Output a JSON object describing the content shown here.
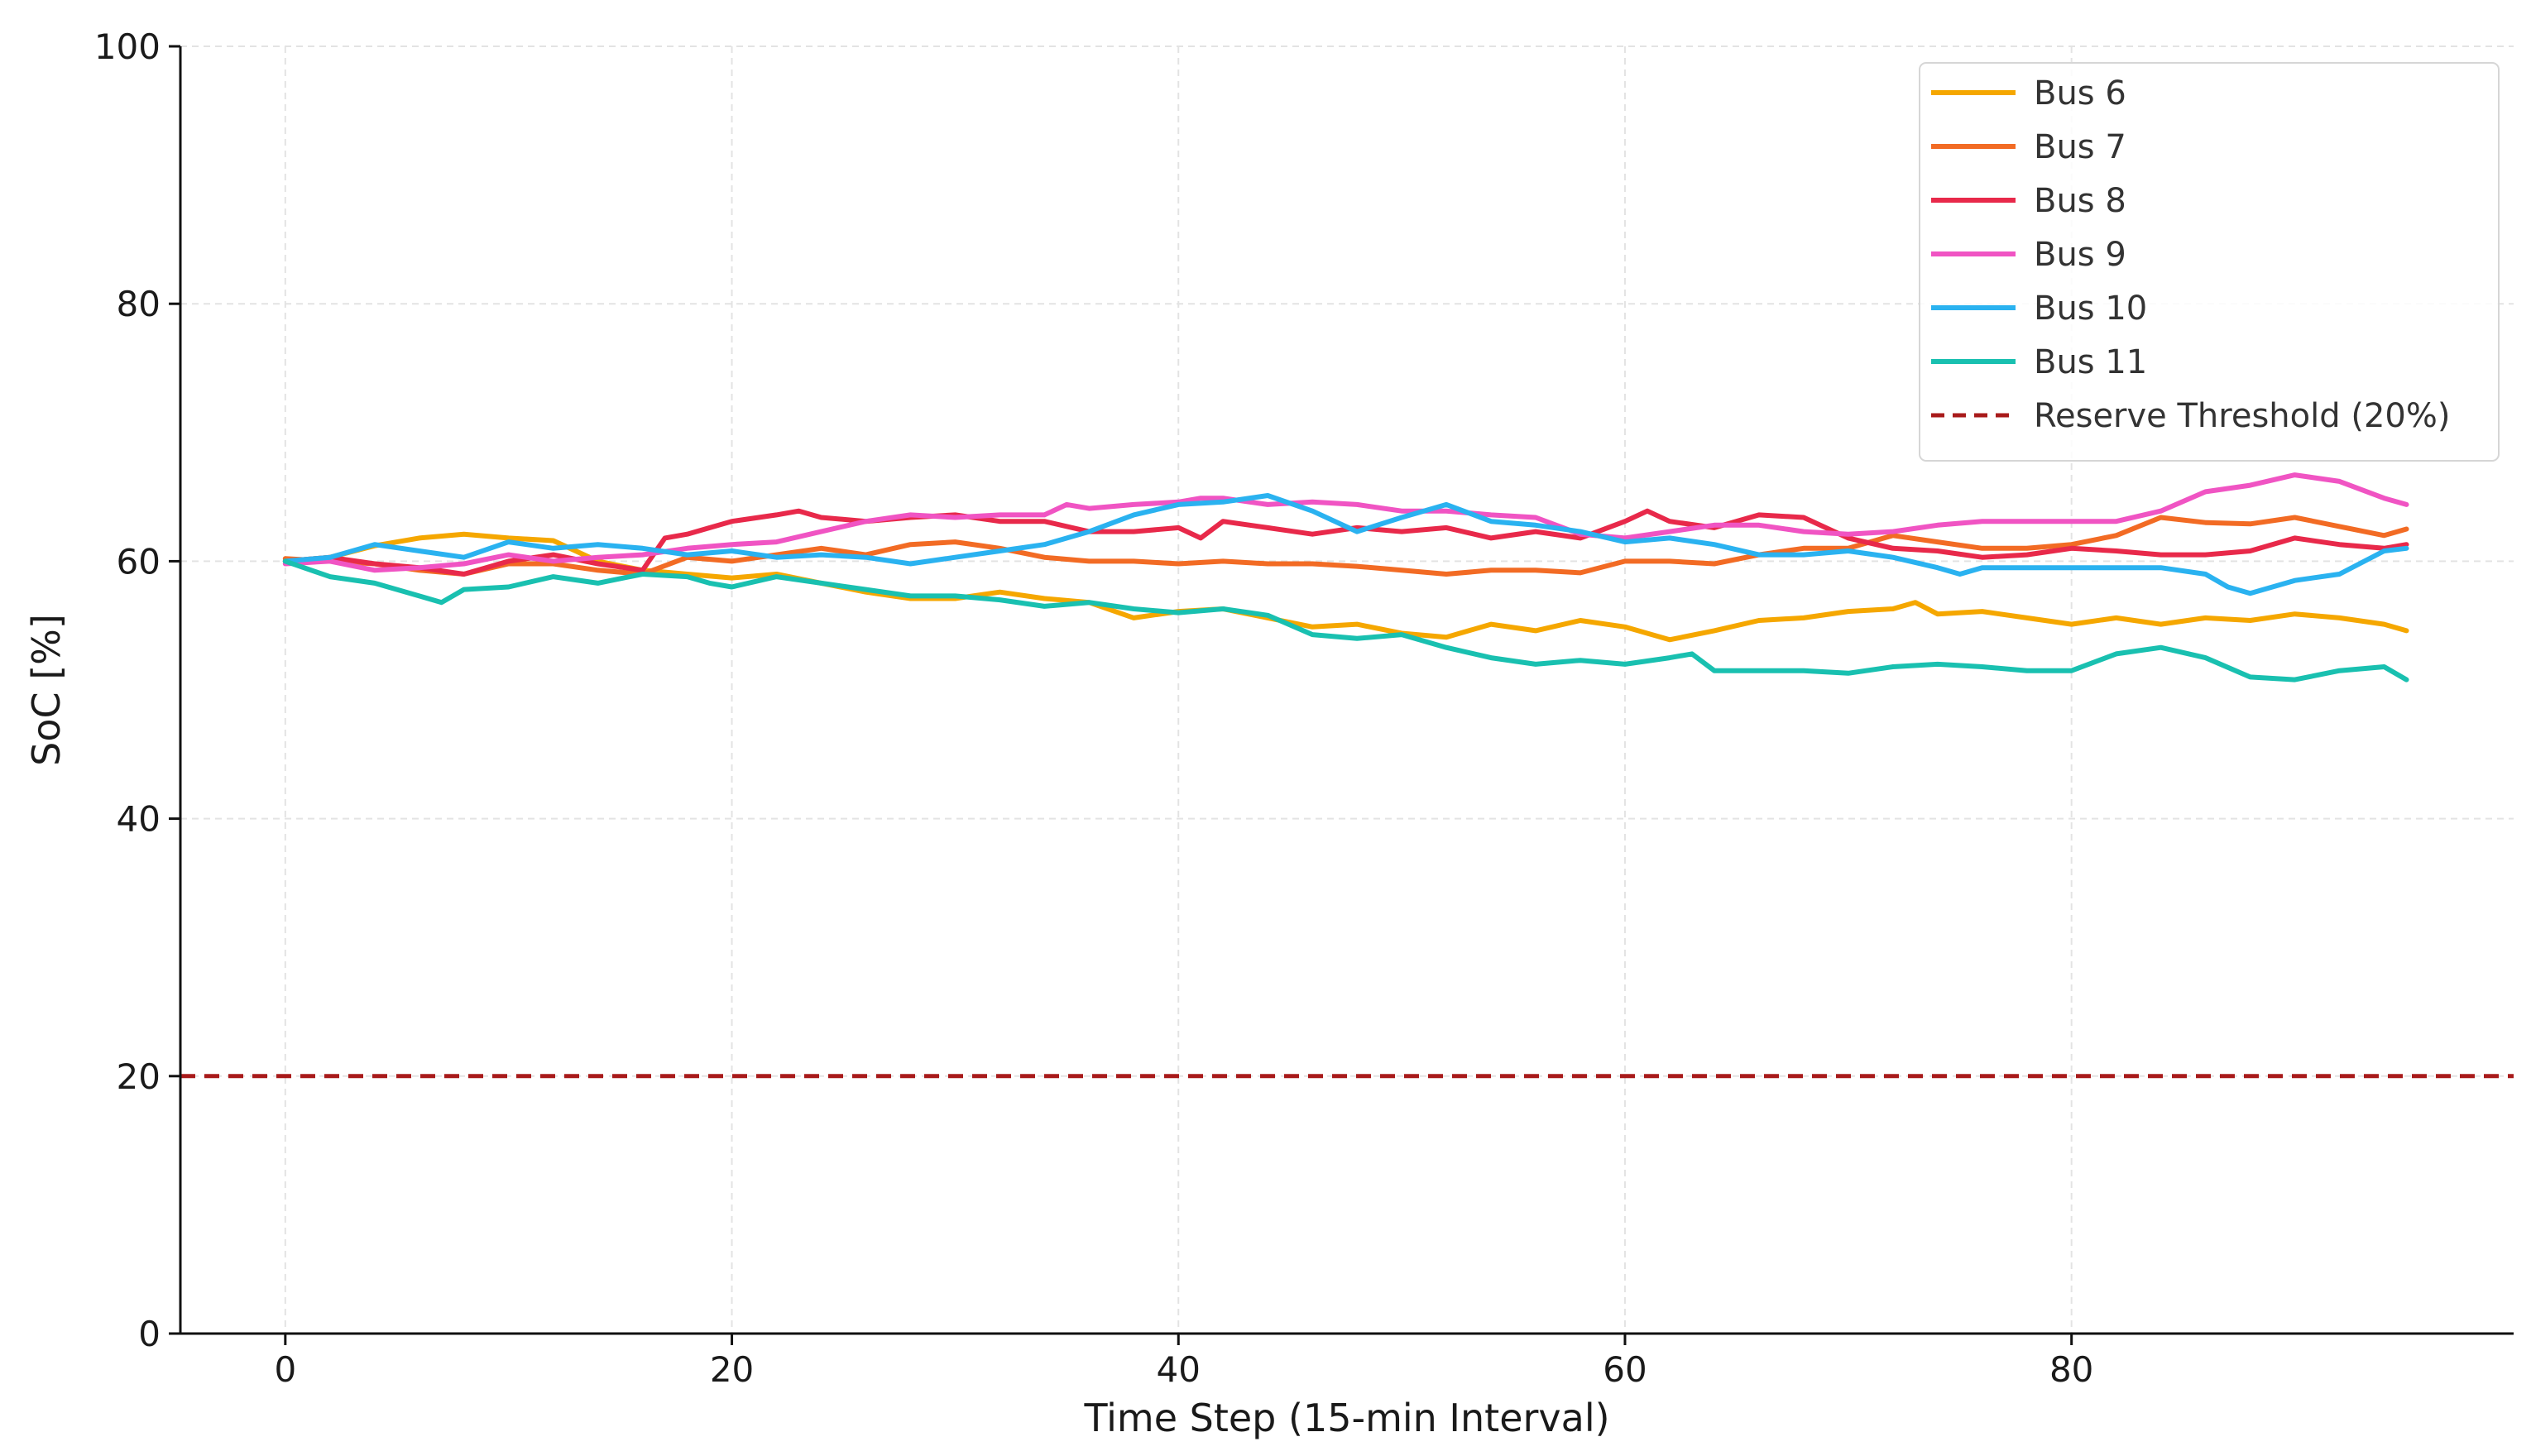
{
  "chart_data": {
    "type": "line",
    "title": "",
    "xlabel": "Time Step (15-min Interval)",
    "ylabel": "SoC [%]",
    "xlim": [
      -4.7,
      99.8
    ],
    "ylim": [
      0,
      100
    ],
    "xticks": [
      0,
      20,
      40,
      60,
      80
    ],
    "yticks": [
      0,
      20,
      40,
      60,
      80,
      100
    ],
    "grid": true,
    "legend_position": "top-right",
    "series": [
      {
        "name": "Bus 6",
        "color": "#F5A700",
        "x": [
          0,
          2,
          4,
          6,
          8,
          10,
          12,
          14,
          16,
          18,
          20,
          22,
          24,
          26,
          28,
          30,
          32,
          34,
          36,
          38,
          40,
          42,
          44,
          46,
          48,
          50,
          52,
          54,
          56,
          58,
          60,
          62,
          64,
          66,
          68,
          70,
          72,
          73,
          74,
          76,
          78,
          80,
          82,
          84,
          86,
          88,
          90,
          92,
          94,
          95
        ],
        "y": [
          60.0,
          60.3,
          61.2,
          61.8,
          62.1,
          61.8,
          61.6,
          60.0,
          59.3,
          59.0,
          58.7,
          59.0,
          58.3,
          57.6,
          57.1,
          57.1,
          57.6,
          57.1,
          56.8,
          55.6,
          56.1,
          56.3,
          55.6,
          54.9,
          55.1,
          54.4,
          54.1,
          55.1,
          54.6,
          55.4,
          54.9,
          53.9,
          54.6,
          55.4,
          55.6,
          56.1,
          56.3,
          56.8,
          55.9,
          56.1,
          55.6,
          55.1,
          55.6,
          55.1,
          55.6,
          55.4,
          55.9,
          55.6,
          55.1,
          54.6
        ]
      },
      {
        "name": "Bus 7",
        "color": "#F26B24",
        "x": [
          0,
          2,
          4,
          6,
          8,
          10,
          12,
          14,
          16,
          18,
          20,
          22,
          24,
          26,
          28,
          30,
          32,
          34,
          36,
          38,
          40,
          42,
          44,
          46,
          48,
          50,
          52,
          54,
          56,
          58,
          60,
          62,
          64,
          66,
          68,
          70,
          72,
          74,
          76,
          78,
          80,
          82,
          84,
          86,
          88,
          90,
          92,
          94,
          95
        ],
        "y": [
          60.2,
          60.0,
          59.8,
          59.3,
          59.0,
          59.8,
          59.8,
          59.3,
          59.0,
          60.3,
          60.0,
          60.5,
          61.0,
          60.5,
          61.3,
          61.5,
          61.0,
          60.3,
          60.0,
          60.0,
          59.8,
          60.0,
          59.8,
          59.8,
          59.6,
          59.3,
          59.0,
          59.3,
          59.3,
          59.1,
          60.0,
          60.0,
          59.8,
          60.5,
          61.0,
          61.0,
          62.0,
          61.5,
          61.0,
          61.0,
          61.3,
          62.0,
          63.4,
          63.0,
          62.9,
          63.4,
          62.7,
          62.0,
          62.5
        ]
      },
      {
        "name": "Bus 8",
        "color": "#E8294A",
        "x": [
          0,
          2,
          4,
          6,
          8,
          10,
          12,
          14,
          16,
          17,
          18,
          20,
          22,
          23,
          24,
          26,
          28,
          30,
          32,
          34,
          36,
          38,
          40,
          41,
          42,
          44,
          46,
          48,
          50,
          52,
          54,
          56,
          58,
          60,
          61,
          62,
          64,
          66,
          68,
          70,
          72,
          74,
          76,
          78,
          80,
          82,
          84,
          86,
          88,
          90,
          92,
          94,
          95
        ],
        "y": [
          60.0,
          60.3,
          59.8,
          59.5,
          59.0,
          60.0,
          60.5,
          59.8,
          59.3,
          61.8,
          62.1,
          63.1,
          63.6,
          63.9,
          63.4,
          63.1,
          63.4,
          63.6,
          63.1,
          63.1,
          62.3,
          62.3,
          62.6,
          61.8,
          63.1,
          62.6,
          62.1,
          62.6,
          62.3,
          62.6,
          61.8,
          62.3,
          61.8,
          63.1,
          63.9,
          63.1,
          62.6,
          63.6,
          63.4,
          61.8,
          61.0,
          60.8,
          60.3,
          60.5,
          61.0,
          60.8,
          60.5,
          60.5,
          60.8,
          61.8,
          61.3,
          61.0,
          61.3
        ]
      },
      {
        "name": "Bus 9",
        "color": "#F054C3",
        "x": [
          0,
          2,
          4,
          6,
          8,
          10,
          12,
          14,
          16,
          18,
          20,
          22,
          24,
          26,
          28,
          30,
          32,
          34,
          35,
          36,
          38,
          40,
          41,
          42,
          44,
          46,
          48,
          50,
          52,
          54,
          56,
          58,
          60,
          62,
          64,
          66,
          68,
          70,
          72,
          74,
          76,
          78,
          80,
          82,
          84,
          86,
          88,
          90,
          92,
          94,
          95
        ],
        "y": [
          59.8,
          60.0,
          59.3,
          59.5,
          59.8,
          60.5,
          60.0,
          60.3,
          60.5,
          61.0,
          61.3,
          61.5,
          62.3,
          63.1,
          63.6,
          63.4,
          63.6,
          63.6,
          64.4,
          64.1,
          64.4,
          64.6,
          64.9,
          64.9,
          64.4,
          64.6,
          64.4,
          63.9,
          63.9,
          63.6,
          63.4,
          62.1,
          61.8,
          62.3,
          62.8,
          62.8,
          62.3,
          62.1,
          62.3,
          62.8,
          63.1,
          63.1,
          63.1,
          63.1,
          63.9,
          65.4,
          65.9,
          66.7,
          66.2,
          64.9,
          64.4
        ]
      },
      {
        "name": "Bus 10",
        "color": "#2AB2F0",
        "x": [
          0,
          2,
          4,
          6,
          8,
          10,
          12,
          14,
          16,
          18,
          20,
          22,
          24,
          26,
          28,
          30,
          32,
          34,
          36,
          38,
          40,
          42,
          44,
          46,
          48,
          50,
          52,
          54,
          56,
          58,
          60,
          62,
          64,
          66,
          68,
          70,
          72,
          74,
          75,
          76,
          78,
          80,
          82,
          84,
          86,
          87,
          88,
          90,
          92,
          94,
          95
        ],
        "y": [
          60.0,
          60.3,
          61.3,
          60.8,
          60.3,
          61.5,
          61.0,
          61.3,
          61.0,
          60.5,
          60.8,
          60.3,
          60.5,
          60.3,
          59.8,
          60.3,
          60.8,
          61.3,
          62.3,
          63.6,
          64.4,
          64.6,
          65.1,
          63.9,
          62.3,
          63.4,
          64.4,
          63.1,
          62.8,
          62.3,
          61.5,
          61.8,
          61.3,
          60.5,
          60.5,
          60.8,
          60.3,
          59.5,
          59.0,
          59.5,
          59.5,
          59.5,
          59.5,
          59.5,
          59.0,
          58.0,
          57.5,
          58.5,
          59.0,
          60.8,
          61.0
        ]
      },
      {
        "name": "Bus 11",
        "color": "#19C0B0",
        "x": [
          0,
          2,
          4,
          6,
          7,
          8,
          10,
          12,
          14,
          16,
          18,
          19,
          20,
          22,
          24,
          26,
          28,
          30,
          32,
          34,
          36,
          38,
          40,
          42,
          44,
          46,
          48,
          50,
          52,
          54,
          56,
          58,
          60,
          62,
          63,
          64,
          66,
          68,
          70,
          72,
          74,
          76,
          78,
          80,
          82,
          84,
          86,
          88,
          90,
          92,
          94,
          95
        ],
        "y": [
          60.0,
          58.8,
          58.3,
          57.3,
          56.8,
          57.8,
          58.0,
          58.8,
          58.3,
          59.0,
          58.8,
          58.3,
          58.0,
          58.8,
          58.3,
          57.8,
          57.3,
          57.3,
          57.0,
          56.5,
          56.8,
          56.3,
          56.0,
          56.3,
          55.8,
          54.3,
          54.0,
          54.3,
          53.3,
          52.5,
          52.0,
          52.3,
          52.0,
          52.5,
          52.8,
          51.5,
          51.5,
          51.5,
          51.3,
          51.8,
          52.0,
          51.8,
          51.5,
          51.5,
          52.8,
          53.3,
          52.5,
          51.0,
          50.8,
          51.5,
          51.8,
          50.8
        ]
      },
      {
        "name": "Reserve Threshold (20%)",
        "color": "#A81A1A",
        "dashed": true,
        "x": [
          -4.7,
          99.8
        ],
        "y": [
          20,
          20
        ]
      }
    ]
  }
}
